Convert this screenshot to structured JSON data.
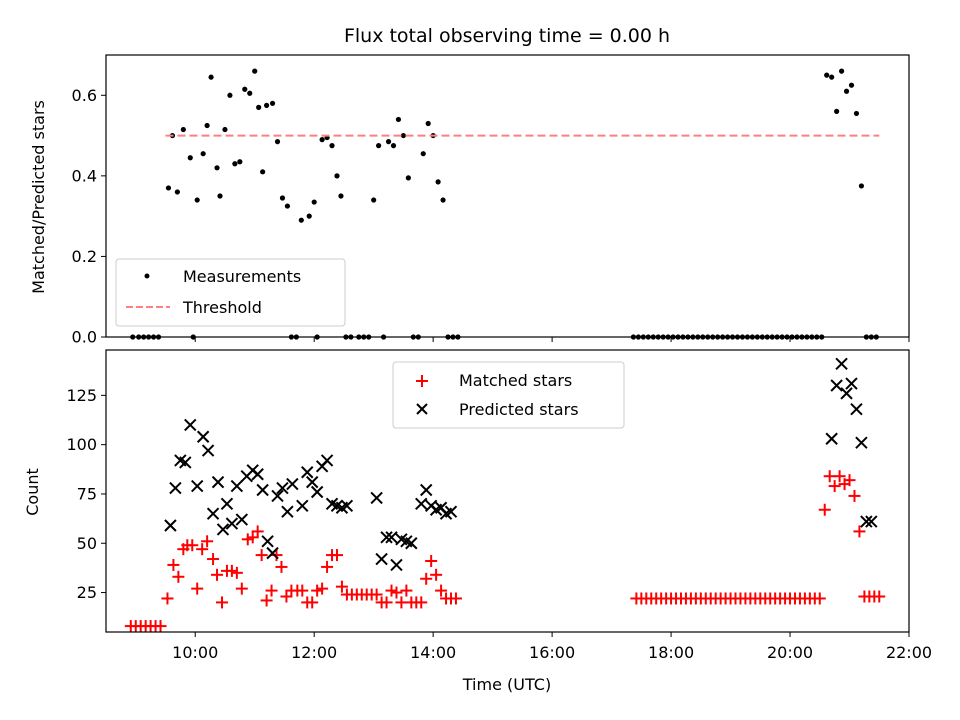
{
  "chart_data": [
    {
      "type": "scatter",
      "title": "Flux total observing time = 0.00 h",
      "xlabel": "",
      "ylabel": "Matched/Predicted stars",
      "xlim": [
        "08:30",
        "22:00"
      ],
      "ylim": [
        0,
        0.7
      ],
      "yticks": [
        "0.0",
        "0.2",
        "0.4",
        "0.6"
      ],
      "grid": false,
      "legend": "lower-left",
      "series": [
        {
          "name": "Measurements",
          "marker": "dot",
          "color": "#000000",
          "x": [
            "08:57",
            "09:03",
            "09:08",
            "09:13",
            "09:18",
            "09:23",
            "09:33",
            "09:37",
            "09:42",
            "09:48",
            "09:55",
            "09:58",
            "10:02",
            "10:08",
            "10:12",
            "10:16",
            "10:22",
            "10:25",
            "10:30",
            "10:35",
            "10:40",
            "10:45",
            "10:50",
            "10:55",
            "11:00",
            "11:04",
            "11:08",
            "11:12",
            "11:18",
            "11:23",
            "11:28",
            "11:33",
            "11:37",
            "11:42",
            "11:47",
            "11:55",
            "12:00",
            "12:03",
            "12:08",
            "12:13",
            "12:18",
            "12:23",
            "12:27",
            "12:32",
            "12:37",
            "12:45",
            "12:50",
            "12:55",
            "13:00",
            "13:05",
            "13:10",
            "13:15",
            "13:20",
            "13:25",
            "13:30",
            "13:35",
            "13:40",
            "13:45",
            "13:50",
            "13:55",
            "14:00",
            "14:05",
            "14:10",
            "14:15",
            "14:20",
            "14:25",
            "17:22",
            "17:27",
            "17:32",
            "17:37",
            "17:42",
            "17:47",
            "17:52",
            "17:57",
            "18:02",
            "18:07",
            "18:12",
            "18:17",
            "18:22",
            "18:27",
            "18:32",
            "18:37",
            "18:42",
            "18:47",
            "18:52",
            "18:57",
            "19:02",
            "19:07",
            "19:12",
            "19:17",
            "19:22",
            "19:27",
            "19:32",
            "19:37",
            "19:42",
            "19:47",
            "19:52",
            "19:57",
            "20:02",
            "20:07",
            "20:12",
            "20:17",
            "20:22",
            "20:27",
            "20:32",
            "20:37",
            "20:42",
            "20:47",
            "20:52",
            "20:57",
            "21:02",
            "21:07",
            "21:12",
            "21:17",
            "21:22",
            "21:27"
          ],
          "y": [
            0,
            0,
            0,
            0,
            0,
            0,
            0.37,
            0.5,
            0.36,
            0.515,
            0.445,
            0,
            0.34,
            0.455,
            0.525,
            0.645,
            0.42,
            0.35,
            0.515,
            0.6,
            0.43,
            0.435,
            0.615,
            0.605,
            0.66,
            0.57,
            0.41,
            0.575,
            0.58,
            0.485,
            0.345,
            0.325,
            0,
            0,
            0.29,
            0.3,
            0.335,
            0,
            0.49,
            0.495,
            0.475,
            0.4,
            0.35,
            0,
            0,
            0,
            0,
            0,
            0.34,
            0.475,
            0,
            0.485,
            0.475,
            0.54,
            0.5,
            0.395,
            0,
            0,
            0.455,
            0.53,
            0.5,
            0.385,
            0.34,
            0,
            0,
            0,
            0,
            0,
            0,
            0,
            0,
            0,
            0,
            0,
            0,
            0,
            0,
            0,
            0,
            0,
            0,
            0,
            0,
            0,
            0,
            0,
            0,
            0,
            0,
            0,
            0,
            0,
            0,
            0,
            0,
            0,
            0,
            0,
            0,
            0,
            0,
            0,
            0,
            0,
            0,
            0.65,
            0.645,
            0.56,
            0.66,
            0.61,
            0.625,
            0.555,
            0.375,
            0,
            0,
            0
          ]
        },
        {
          "name": "Threshold",
          "marker": "dashed-line",
          "color": "#ff7f7f",
          "x": [
            "09:30",
            "21:30"
          ],
          "y": [
            0.5,
            0.5
          ]
        }
      ]
    },
    {
      "type": "scatter",
      "title": "",
      "xlabel": "Time (UTC)",
      "ylabel": "Count",
      "xlim": [
        "08:30",
        "22:00"
      ],
      "ylim": [
        5,
        148
      ],
      "xticks": [
        "10:00",
        "12:00",
        "14:00",
        "16:00",
        "18:00",
        "20:00",
        "22:00"
      ],
      "yticks": [
        "25",
        "50",
        "75",
        "100",
        "125"
      ],
      "grid": false,
      "legend": "top-center",
      "series": [
        {
          "name": "Matched stars",
          "marker": "plus",
          "color": "#ff0000",
          "x": [
            "08:55",
            "09:00",
            "09:05",
            "09:10",
            "09:15",
            "09:20",
            "09:25",
            "09:32",
            "09:38",
            "09:43",
            "09:48",
            "09:52",
            "09:57",
            "10:02",
            "10:07",
            "10:12",
            "10:18",
            "10:22",
            "10:27",
            "10:32",
            "10:37",
            "10:42",
            "10:47",
            "10:53",
            "10:58",
            "11:03",
            "11:07",
            "11:12",
            "11:17",
            "11:22",
            "11:27",
            "11:32",
            "11:37",
            "11:43",
            "11:48",
            "11:53",
            "11:58",
            "12:03",
            "12:08",
            "12:13",
            "12:18",
            "12:23",
            "12:28",
            "12:33",
            "12:38",
            "12:43",
            "12:48",
            "12:53",
            "12:58",
            "13:03",
            "13:08",
            "13:13",
            "13:18",
            "13:23",
            "13:28",
            "13:33",
            "13:38",
            "13:43",
            "13:48",
            "13:53",
            "13:58",
            "14:03",
            "14:08",
            "14:13",
            "14:18",
            "14:23",
            "17:25",
            "17:30",
            "17:35",
            "17:40",
            "17:45",
            "17:50",
            "17:55",
            "18:00",
            "18:05",
            "18:10",
            "18:15",
            "18:20",
            "18:25",
            "18:30",
            "18:35",
            "18:40",
            "18:45",
            "18:50",
            "18:55",
            "19:00",
            "19:05",
            "19:10",
            "19:15",
            "19:20",
            "19:25",
            "19:30",
            "19:35",
            "19:40",
            "19:45",
            "19:50",
            "19:55",
            "20:00",
            "20:05",
            "20:10",
            "20:15",
            "20:20",
            "20:25",
            "20:30",
            "20:35",
            "20:40",
            "20:45",
            "20:50",
            "20:55",
            "21:00",
            "21:05",
            "21:10",
            "21:15",
            "21:20",
            "21:25",
            "21:30"
          ],
          "y": [
            8,
            8,
            8,
            8,
            8,
            8,
            8,
            22,
            39,
            33,
            47,
            49,
            49,
            27,
            47,
            51,
            42,
            34,
            20,
            36,
            36,
            35,
            27,
            52,
            53,
            56,
            44,
            21,
            26,
            44,
            38,
            23,
            26,
            26,
            26,
            20,
            20,
            26,
            27,
            38,
            44,
            44,
            28,
            24,
            24,
            24,
            24,
            24,
            24,
            24,
            20,
            20,
            26,
            25,
            20,
            26,
            20,
            20,
            20,
            32,
            41,
            34,
            26,
            22,
            22,
            22,
            22,
            22,
            22,
            22,
            22,
            22,
            22,
            22,
            22,
            22,
            22,
            22,
            22,
            22,
            22,
            22,
            22,
            22,
            22,
            22,
            22,
            22,
            22,
            22,
            22,
            22,
            22,
            22,
            22,
            22,
            22,
            22,
            22,
            22,
            22,
            22,
            22,
            22,
            67,
            84,
            79,
            84,
            80,
            82,
            74,
            56,
            23,
            23,
            23,
            23
          ]
        },
        {
          "name": "Predicted stars",
          "marker": "x",
          "color": "#000000",
          "x": [
            "09:35",
            "09:40",
            "09:45",
            "09:50",
            "09:55",
            "10:02",
            "10:08",
            "10:13",
            "10:18",
            "10:23",
            "10:28",
            "10:32",
            "10:37",
            "10:42",
            "10:47",
            "10:52",
            "10:58",
            "11:03",
            "11:08",
            "11:13",
            "11:18",
            "11:23",
            "11:28",
            "11:33",
            "11:38",
            "11:48",
            "11:53",
            "11:58",
            "12:03",
            "12:08",
            "12:13",
            "12:18",
            "12:23",
            "12:28",
            "12:33",
            "13:03",
            "13:08",
            "13:13",
            "13:18",
            "13:23",
            "13:28",
            "13:33",
            "13:38",
            "13:48",
            "13:53",
            "13:58",
            "14:03",
            "14:08",
            "14:13",
            "14:18",
            "20:42",
            "20:47",
            "20:52",
            "20:57",
            "21:02",
            "21:07",
            "21:12",
            "21:17",
            "21:22"
          ],
          "y": [
            59,
            78,
            92,
            91,
            110,
            79,
            104,
            97,
            65,
            81,
            57,
            70,
            60,
            79,
            62,
            84,
            87,
            85,
            77,
            51,
            45,
            74,
            78,
            66,
            80,
            69,
            86,
            81,
            76,
            89,
            92,
            70,
            69,
            68,
            69,
            73,
            42,
            53,
            53,
            39,
            52,
            51,
            50,
            70,
            77,
            69,
            67,
            68,
            65,
            66,
            103,
            130,
            141,
            126,
            131,
            118,
            101,
            61,
            61
          ]
        }
      ]
    }
  ]
}
